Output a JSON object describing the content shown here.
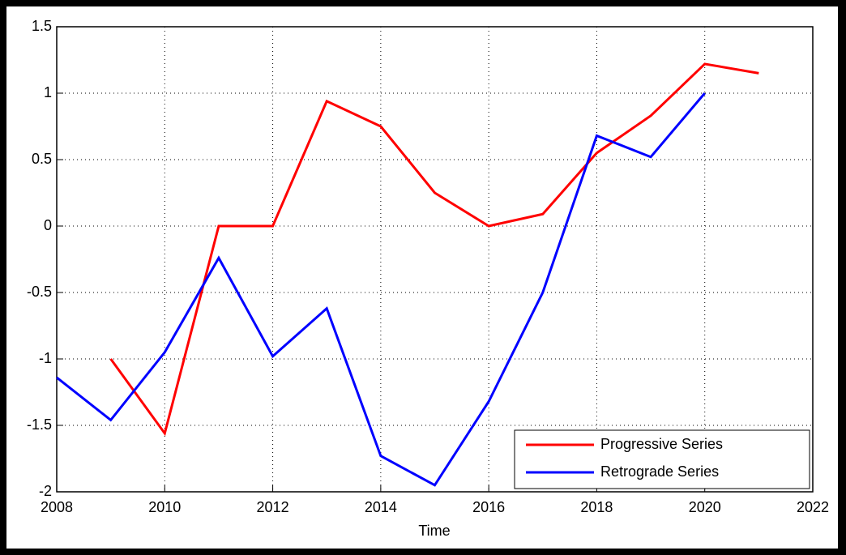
{
  "chart_data": {
    "type": "line",
    "x_label": "Time",
    "x": [
      2008,
      2009,
      2010,
      2011,
      2012,
      2013,
      2014,
      2015,
      2016,
      2017,
      2018,
      2019,
      2020,
      2021
    ],
    "series": [
      {
        "name": "Progressive Series",
        "color": "#ff0000",
        "values": [
          null,
          -1,
          -1.56,
          0,
          0,
          0.94,
          0.75,
          0.25,
          0,
          0.09,
          0.55,
          0.83,
          1.22,
          1.15
        ]
      },
      {
        "name": "Retrograde Series",
        "color": "#0000ff",
        "values": [
          -1.14,
          -1.46,
          -0.95,
          -0.24,
          -0.98,
          -0.62,
          -1.73,
          -1.95,
          -1.32,
          -0.5,
          0.68,
          0.52,
          1.0,
          null
        ]
      }
    ],
    "xlim": [
      2008,
      2022
    ],
    "xticks": [
      2008,
      2010,
      2012,
      2014,
      2016,
      2018,
      2020,
      2022
    ],
    "ylim": [
      -2,
      1.5
    ],
    "yticks": [
      -2,
      -1.5,
      -1,
      -0.5,
      0,
      0.5,
      1,
      1.5
    ],
    "grid": true,
    "legend": "lower right"
  }
}
